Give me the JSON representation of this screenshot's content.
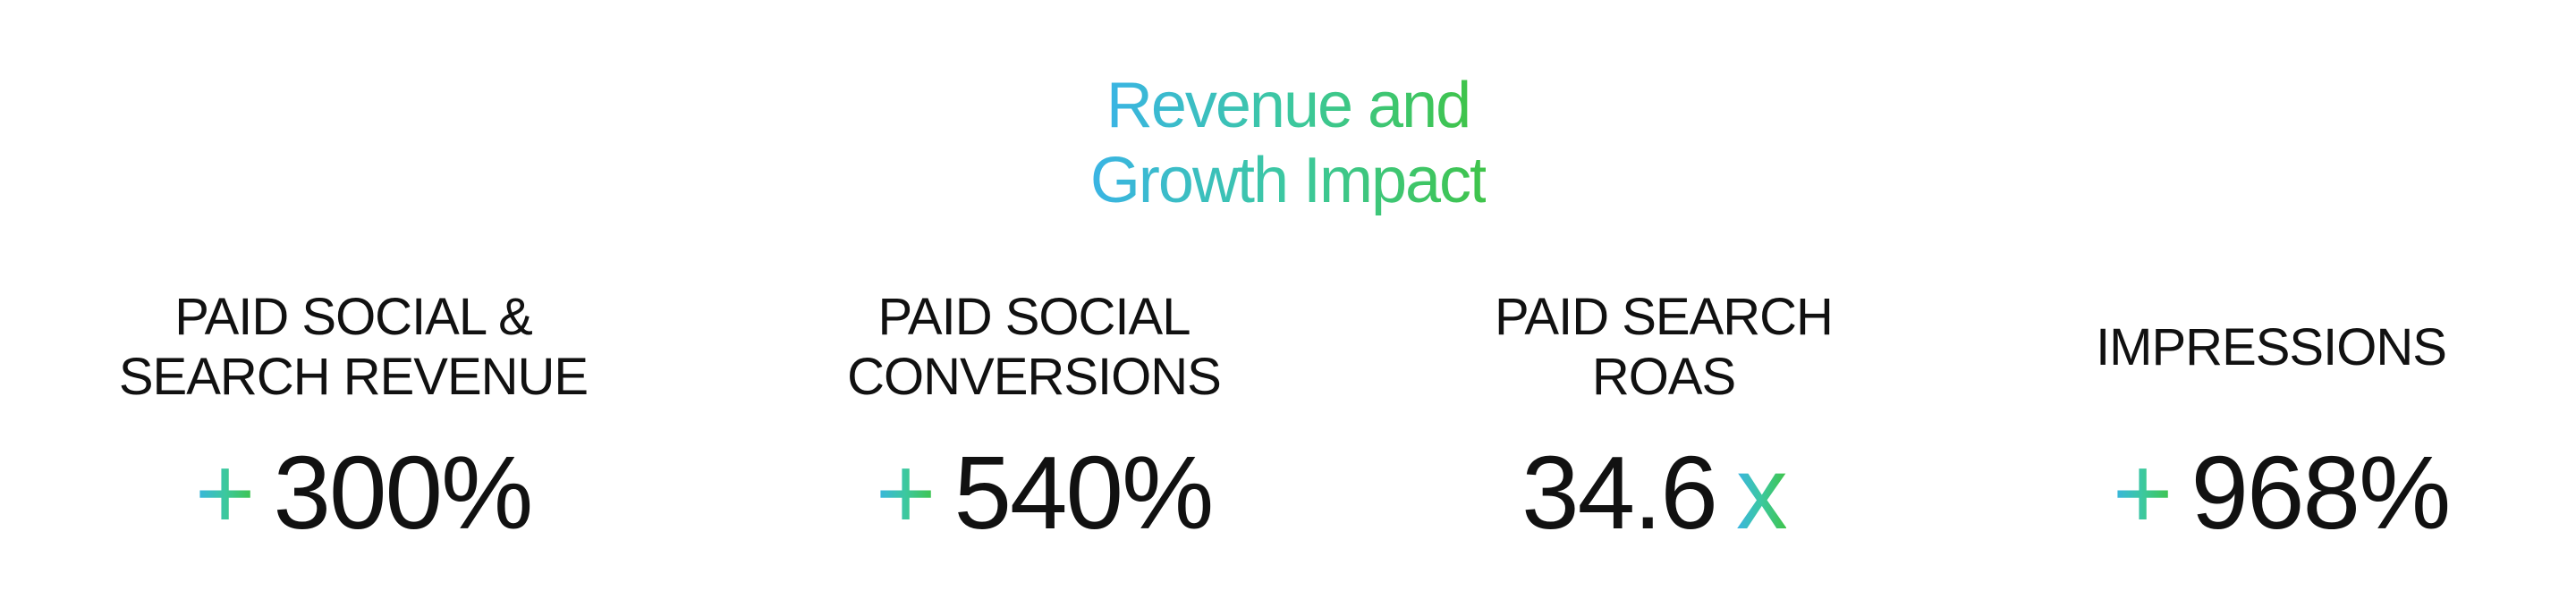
{
  "header": {
    "title_lines": [
      "Revenue and",
      "Growth Impact"
    ]
  },
  "stats": [
    {
      "label_lines": [
        "PAID SOCIAL &",
        "SEARCH REVENUE"
      ],
      "prefix": "+",
      "value": "300%"
    },
    {
      "label_lines": [
        "PAID SOCIAL",
        "CONVERSIONS"
      ],
      "prefix": "+",
      "value": "540%"
    },
    {
      "label_lines": [
        "PAID SEARCH",
        "ROAS"
      ],
      "value": "34.6",
      "suffix": "x"
    },
    {
      "label_lines": [
        "IMPRESSIONS"
      ],
      "prefix": "+",
      "value": "968%"
    }
  ]
}
